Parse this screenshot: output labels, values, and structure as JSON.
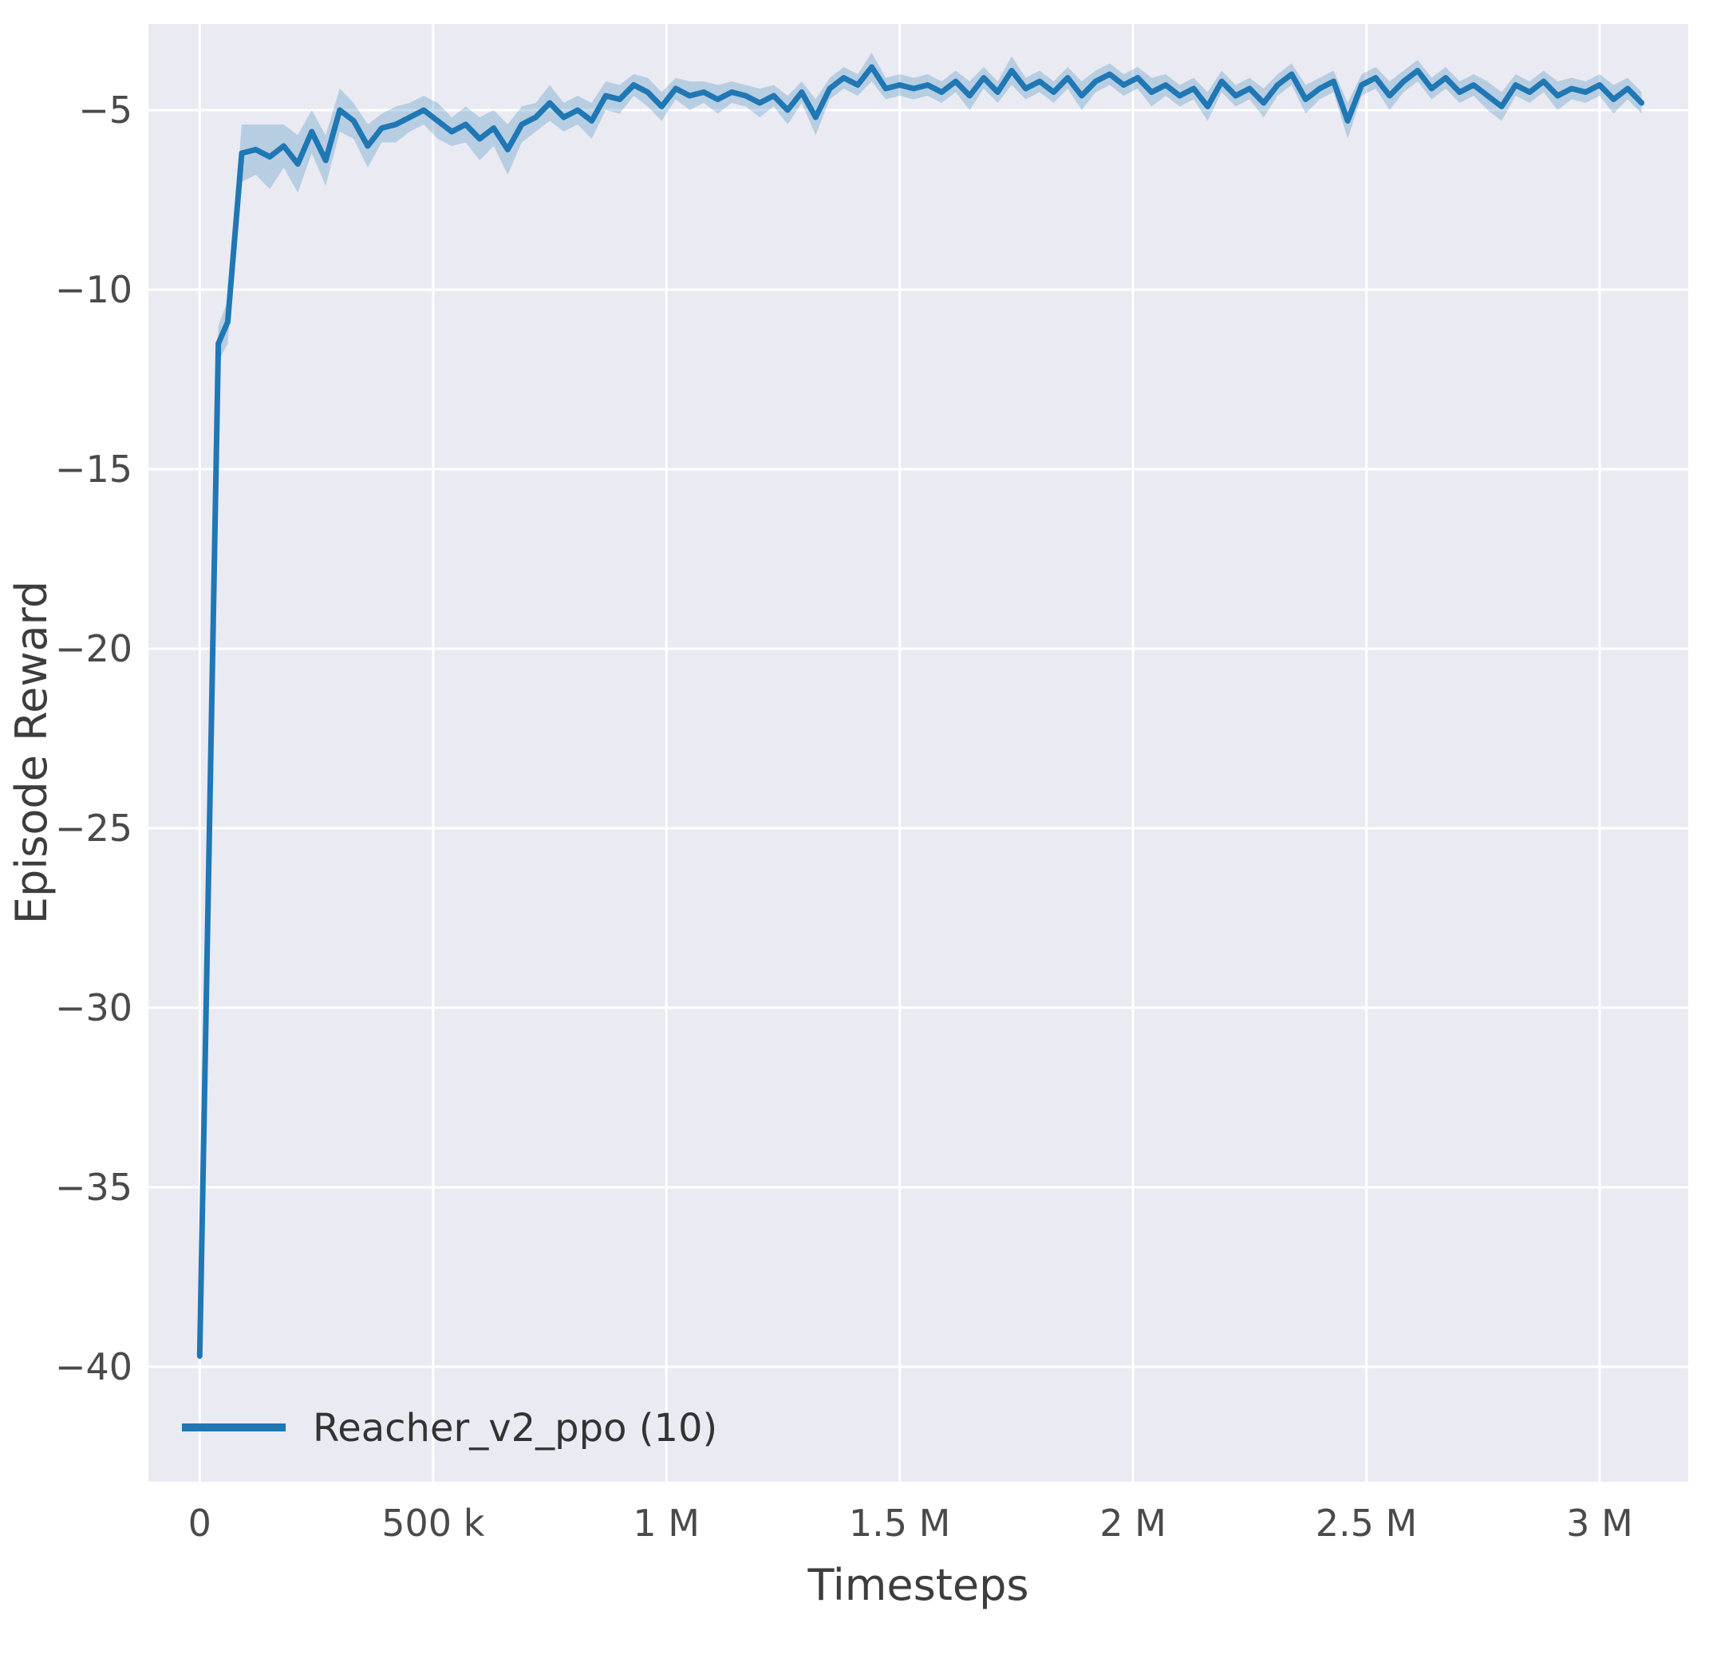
{
  "figure": {
    "background": "#ffffff",
    "plot_background": "#eaeaf2",
    "grid_color": "#ffffff",
    "tick_color": "#4a4a4a",
    "label_color": "#3d3d3d",
    "line_color": "#1f77b4",
    "band_color": "rgba(31,119,180,0.25)"
  },
  "chart_data": {
    "type": "line",
    "title": "",
    "xlabel": "Timesteps",
    "ylabel": "Episode Reward",
    "grid": true,
    "xlim": [
      -110000,
      3190000
    ],
    "ylim": [
      -43.2,
      -2.6
    ],
    "xticks": {
      "values": [
        0,
        500000,
        1000000,
        1500000,
        2000000,
        2500000,
        3000000
      ],
      "labels": [
        "0",
        "500 k",
        "1 M",
        "1.5 M",
        "2 M",
        "2.5 M",
        "3 M"
      ]
    },
    "yticks": {
      "values": [
        -5,
        -10,
        -15,
        -20,
        -25,
        -30,
        -35,
        -40
      ],
      "labels": [
        "−5",
        "−10",
        "−15",
        "−20",
        "−25",
        "−30",
        "−35",
        "−40"
      ]
    },
    "legend": {
      "position": "lower-left",
      "entries": [
        {
          "label": "Reacher_v2_ppo (10)",
          "color": "#1f77b4"
        }
      ]
    },
    "series": [
      {
        "name": "Reacher_v2_ppo (10)",
        "color": "#1f77b4",
        "band_color": "rgba(31,119,180,0.25)",
        "x": [
          0,
          40000,
          60000,
          90000,
          120000,
          150000,
          180000,
          210000,
          240000,
          270000,
          300000,
          330000,
          360000,
          390000,
          420000,
          450000,
          480000,
          510000,
          540000,
          570000,
          600000,
          630000,
          660000,
          690000,
          720000,
          750000,
          780000,
          810000,
          840000,
          870000,
          900000,
          930000,
          960000,
          990000,
          1020000,
          1050000,
          1080000,
          1110000,
          1140000,
          1170000,
          1200000,
          1230000,
          1260000,
          1290000,
          1320000,
          1350000,
          1380000,
          1410000,
          1440000,
          1470000,
          1500000,
          1530000,
          1560000,
          1590000,
          1620000,
          1650000,
          1680000,
          1710000,
          1740000,
          1770000,
          1800000,
          1830000,
          1860000,
          1890000,
          1920000,
          1950000,
          1980000,
          2010000,
          2040000,
          2070000,
          2100000,
          2130000,
          2160000,
          2190000,
          2220000,
          2250000,
          2280000,
          2310000,
          2340000,
          2370000,
          2400000,
          2430000,
          2460000,
          2490000,
          2520000,
          2550000,
          2580000,
          2610000,
          2640000,
          2670000,
          2700000,
          2730000,
          2760000,
          2790000,
          2820000,
          2850000,
          2880000,
          2910000,
          2940000,
          2970000,
          3000000,
          3030000,
          3060000,
          3090000
        ],
        "y": [
          -39.7,
          -11.5,
          -10.9,
          -6.2,
          -6.1,
          -6.3,
          -6.0,
          -6.5,
          -5.6,
          -6.4,
          -5.0,
          -5.3,
          -6.0,
          -5.5,
          -5.4,
          -5.2,
          -5.0,
          -5.3,
          -5.6,
          -5.4,
          -5.8,
          -5.5,
          -6.1,
          -5.4,
          -5.2,
          -4.8,
          -5.2,
          -5.0,
          -5.3,
          -4.6,
          -4.7,
          -4.3,
          -4.5,
          -4.9,
          -4.4,
          -4.6,
          -4.5,
          -4.7,
          -4.5,
          -4.6,
          -4.8,
          -4.6,
          -5.0,
          -4.5,
          -5.2,
          -4.4,
          -4.1,
          -4.3,
          -3.8,
          -4.4,
          -4.3,
          -4.4,
          -4.3,
          -4.5,
          -4.2,
          -4.6,
          -4.1,
          -4.5,
          -3.9,
          -4.4,
          -4.2,
          -4.5,
          -4.1,
          -4.6,
          -4.2,
          -4.0,
          -4.3,
          -4.1,
          -4.5,
          -4.3,
          -4.6,
          -4.4,
          -4.9,
          -4.2,
          -4.6,
          -4.4,
          -4.8,
          -4.3,
          -4.0,
          -4.7,
          -4.4,
          -4.2,
          -5.3,
          -4.3,
          -4.1,
          -4.6,
          -4.2,
          -3.9,
          -4.4,
          -4.1,
          -4.5,
          -4.3,
          -4.6,
          -4.9,
          -4.3,
          -4.5,
          -4.2,
          -4.6,
          -4.4,
          -4.5,
          -4.3,
          -4.7,
          -4.4,
          -4.8
        ],
        "band_halfwidth": [
          0.5,
          0.5,
          0.6,
          0.8,
          0.7,
          0.9,
          0.6,
          0.8,
          0.6,
          0.7,
          0.6,
          0.5,
          0.6,
          0.4,
          0.5,
          0.4,
          0.4,
          0.5,
          0.4,
          0.5,
          0.6,
          0.5,
          0.7,
          0.5,
          0.4,
          0.5,
          0.4,
          0.4,
          0.5,
          0.4,
          0.4,
          0.3,
          0.4,
          0.4,
          0.3,
          0.4,
          0.3,
          0.4,
          0.3,
          0.3,
          0.4,
          0.3,
          0.4,
          0.3,
          0.5,
          0.3,
          0.3,
          0.3,
          0.4,
          0.3,
          0.3,
          0.3,
          0.3,
          0.3,
          0.3,
          0.4,
          0.3,
          0.3,
          0.4,
          0.3,
          0.3,
          0.3,
          0.3,
          0.4,
          0.3,
          0.3,
          0.3,
          0.3,
          0.4,
          0.3,
          0.3,
          0.3,
          0.4,
          0.3,
          0.3,
          0.3,
          0.4,
          0.3,
          0.3,
          0.4,
          0.3,
          0.3,
          0.5,
          0.3,
          0.3,
          0.4,
          0.3,
          0.3,
          0.3,
          0.3,
          0.3,
          0.3,
          0.4,
          0.4,
          0.3,
          0.3,
          0.3,
          0.4,
          0.3,
          0.3,
          0.3,
          0.4,
          0.3,
          0.3
        ]
      }
    ]
  }
}
